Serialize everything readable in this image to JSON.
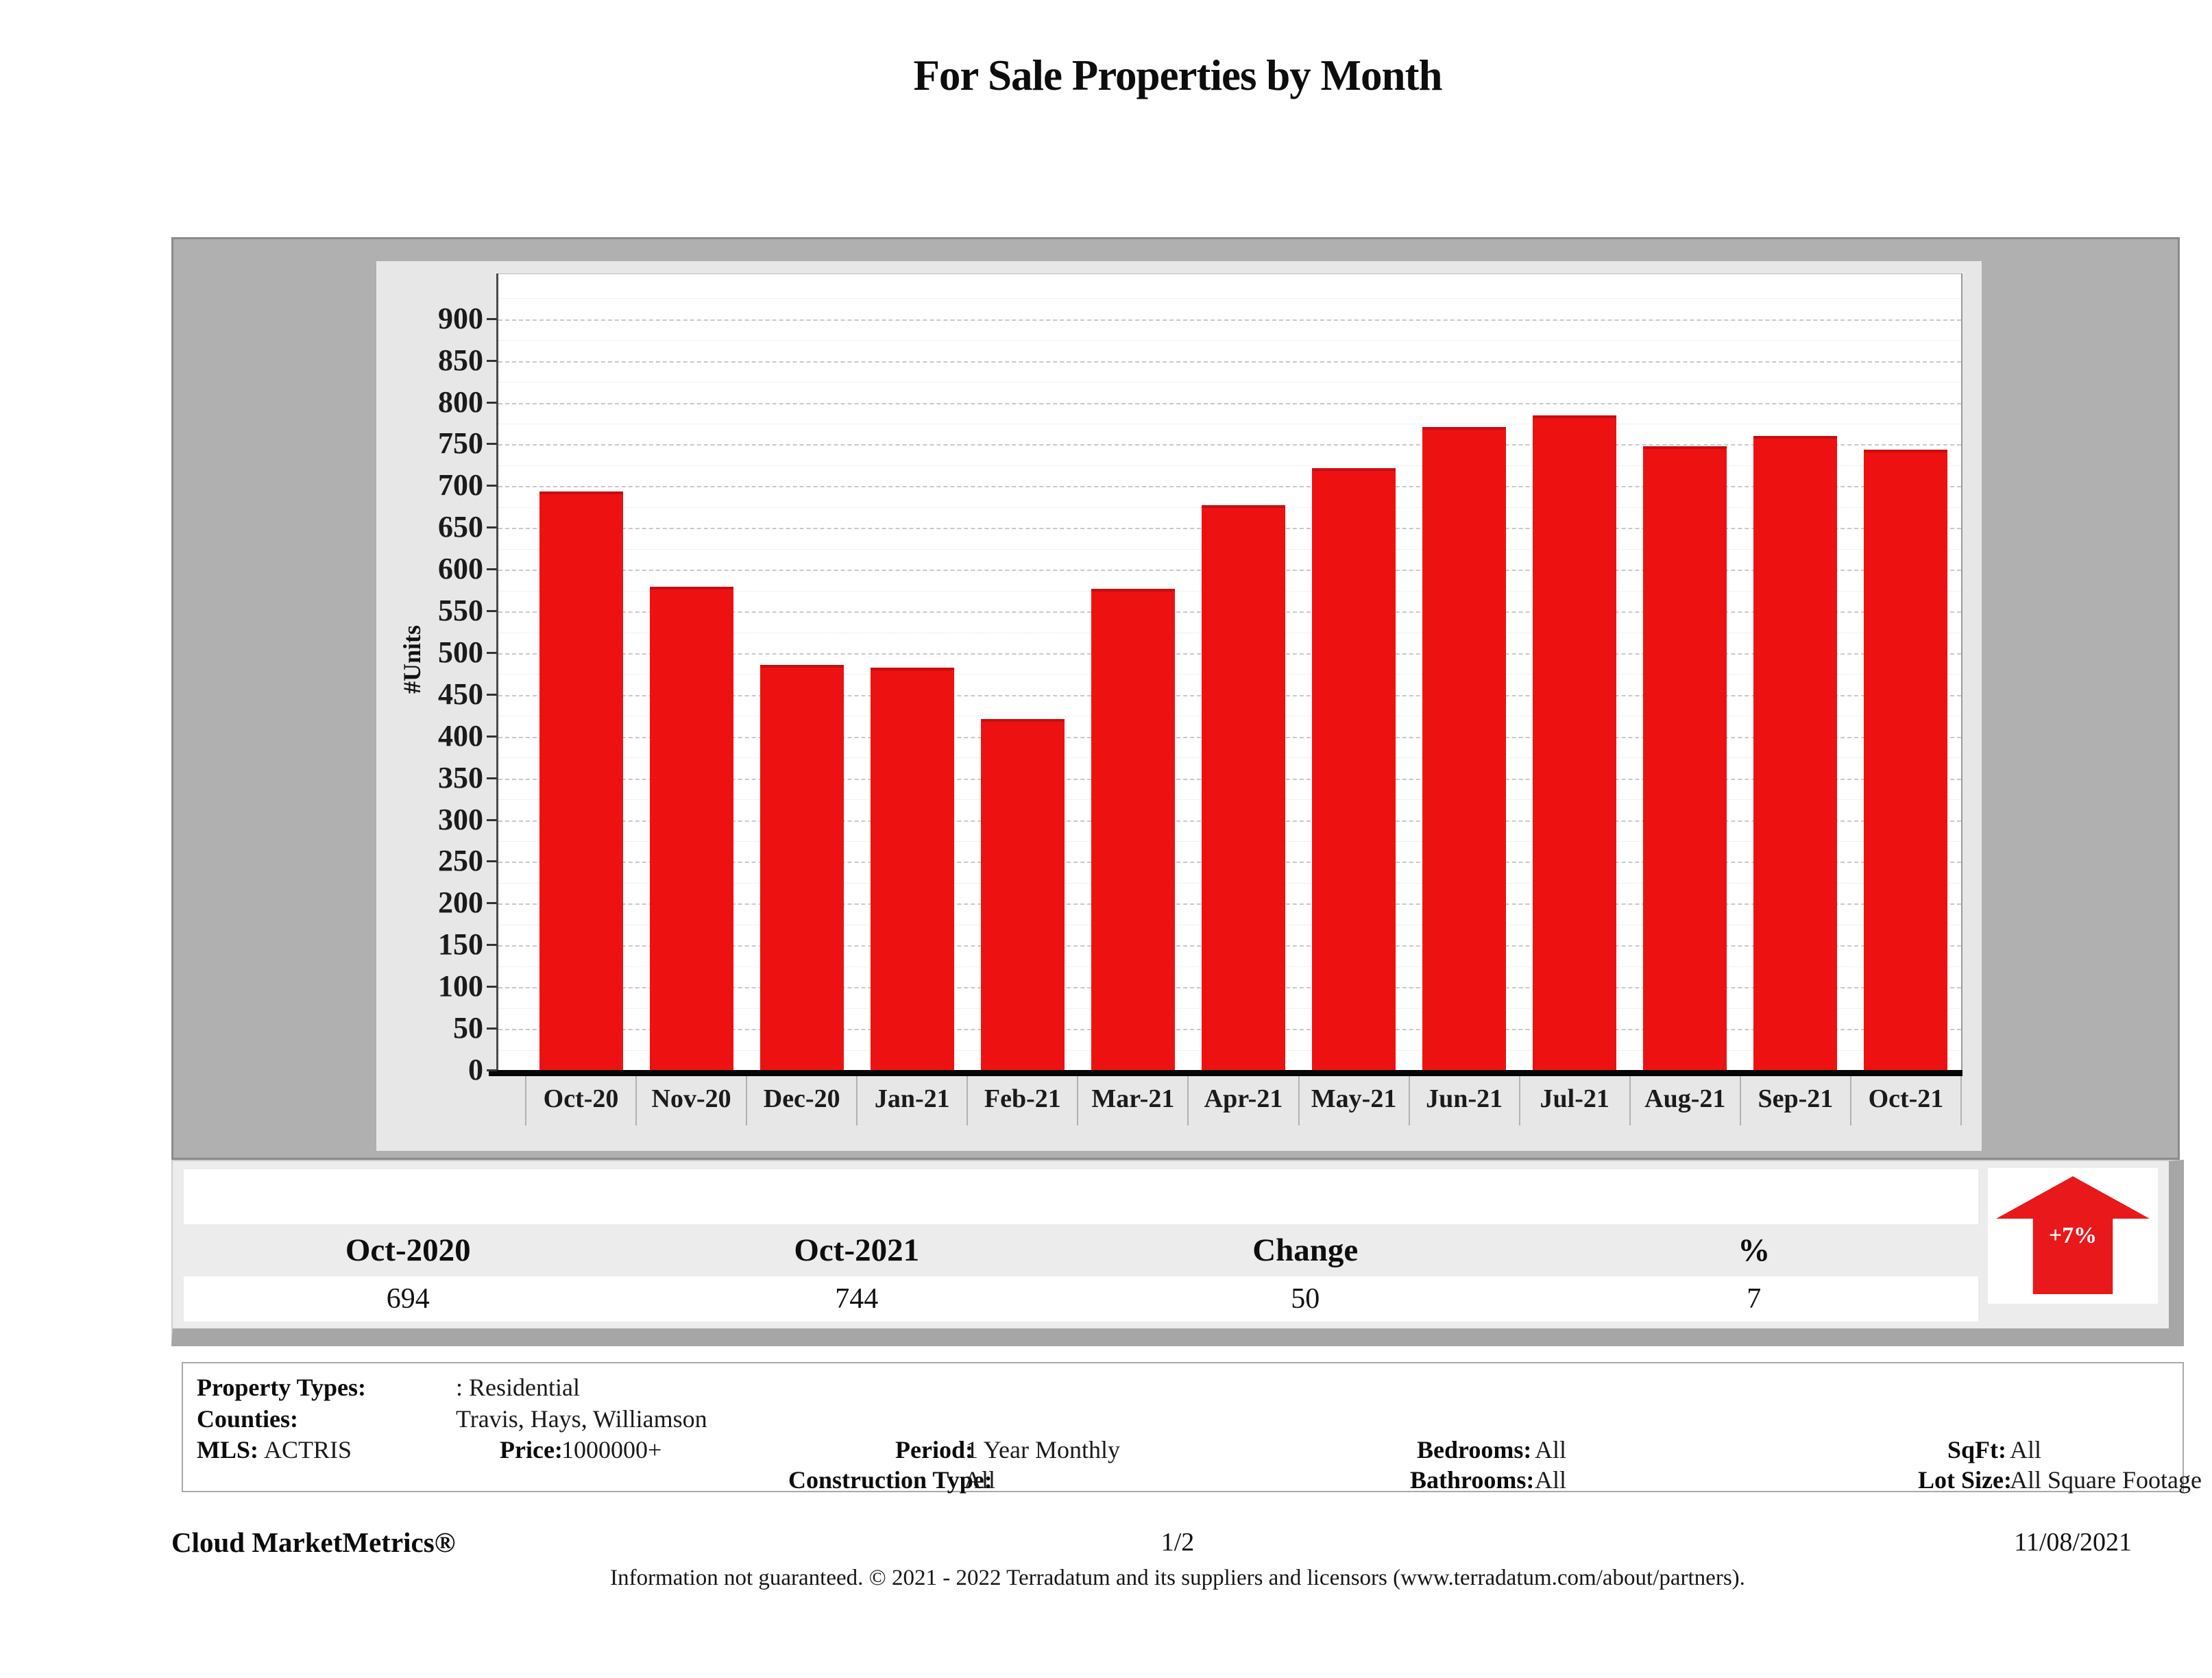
{
  "title": "For Sale Properties by Month",
  "chart_data": {
    "type": "bar",
    "title": "For Sale Properties by Month",
    "categories": [
      "Oct-20",
      "Nov-20",
      "Dec-20",
      "Jan-21",
      "Feb-21",
      "Mar-21",
      "Apr-21",
      "May-21",
      "Jun-21",
      "Jul-21",
      "Aug-21",
      "Sep-21",
      "Oct-21"
    ],
    "values": [
      694,
      580,
      486,
      483,
      421,
      577,
      677,
      722,
      771,
      785,
      748,
      760,
      744
    ],
    "xlabel": "",
    "ylabel": "#Units",
    "ylim": [
      0,
      900
    ],
    "tick_step": 50,
    "minor_tick_step": 25,
    "grid": true,
    "legend": "none",
    "bar_color": "#ee1111"
  },
  "summary_table": {
    "columns": [
      "Oct-2020",
      "Oct-2021",
      "Change",
      "%"
    ],
    "values": [
      "694",
      "744",
      "50",
      "7"
    ],
    "trend_badge": "+7%",
    "trend_direction": "up",
    "trend_color": "#e8181b"
  },
  "filters": {
    "property_types_label": "Property Types:",
    "property_types_value": ": Residential",
    "counties_label": "Counties:",
    "counties_value": "Travis, Hays, Williamson",
    "mls_label": "MLS:",
    "mls_value": "ACTRIS",
    "price_label": "Price:",
    "price_value": "1000000+",
    "period_label": "Period:",
    "period_value": "1 Year Monthly",
    "construction_label": "Construction Type:",
    "construction_value": "All",
    "bedrooms_label": "Bedrooms:",
    "bedrooms_value": "All",
    "bathrooms_label": "Bathrooms:",
    "bathrooms_value": "All",
    "sqft_label": "SqFt:",
    "sqft_value": "All",
    "lot_size_label": "Lot Size:",
    "lot_size_value": "All Square Footage"
  },
  "footer": {
    "brand": "Cloud MarketMetrics®",
    "page_number": "1/2",
    "date": "11/08/2021",
    "disclaimer": "Information not guaranteed. © 2021 - 2022 Terradatum and its suppliers and licensors (www.terradatum.com/about/partners)."
  }
}
